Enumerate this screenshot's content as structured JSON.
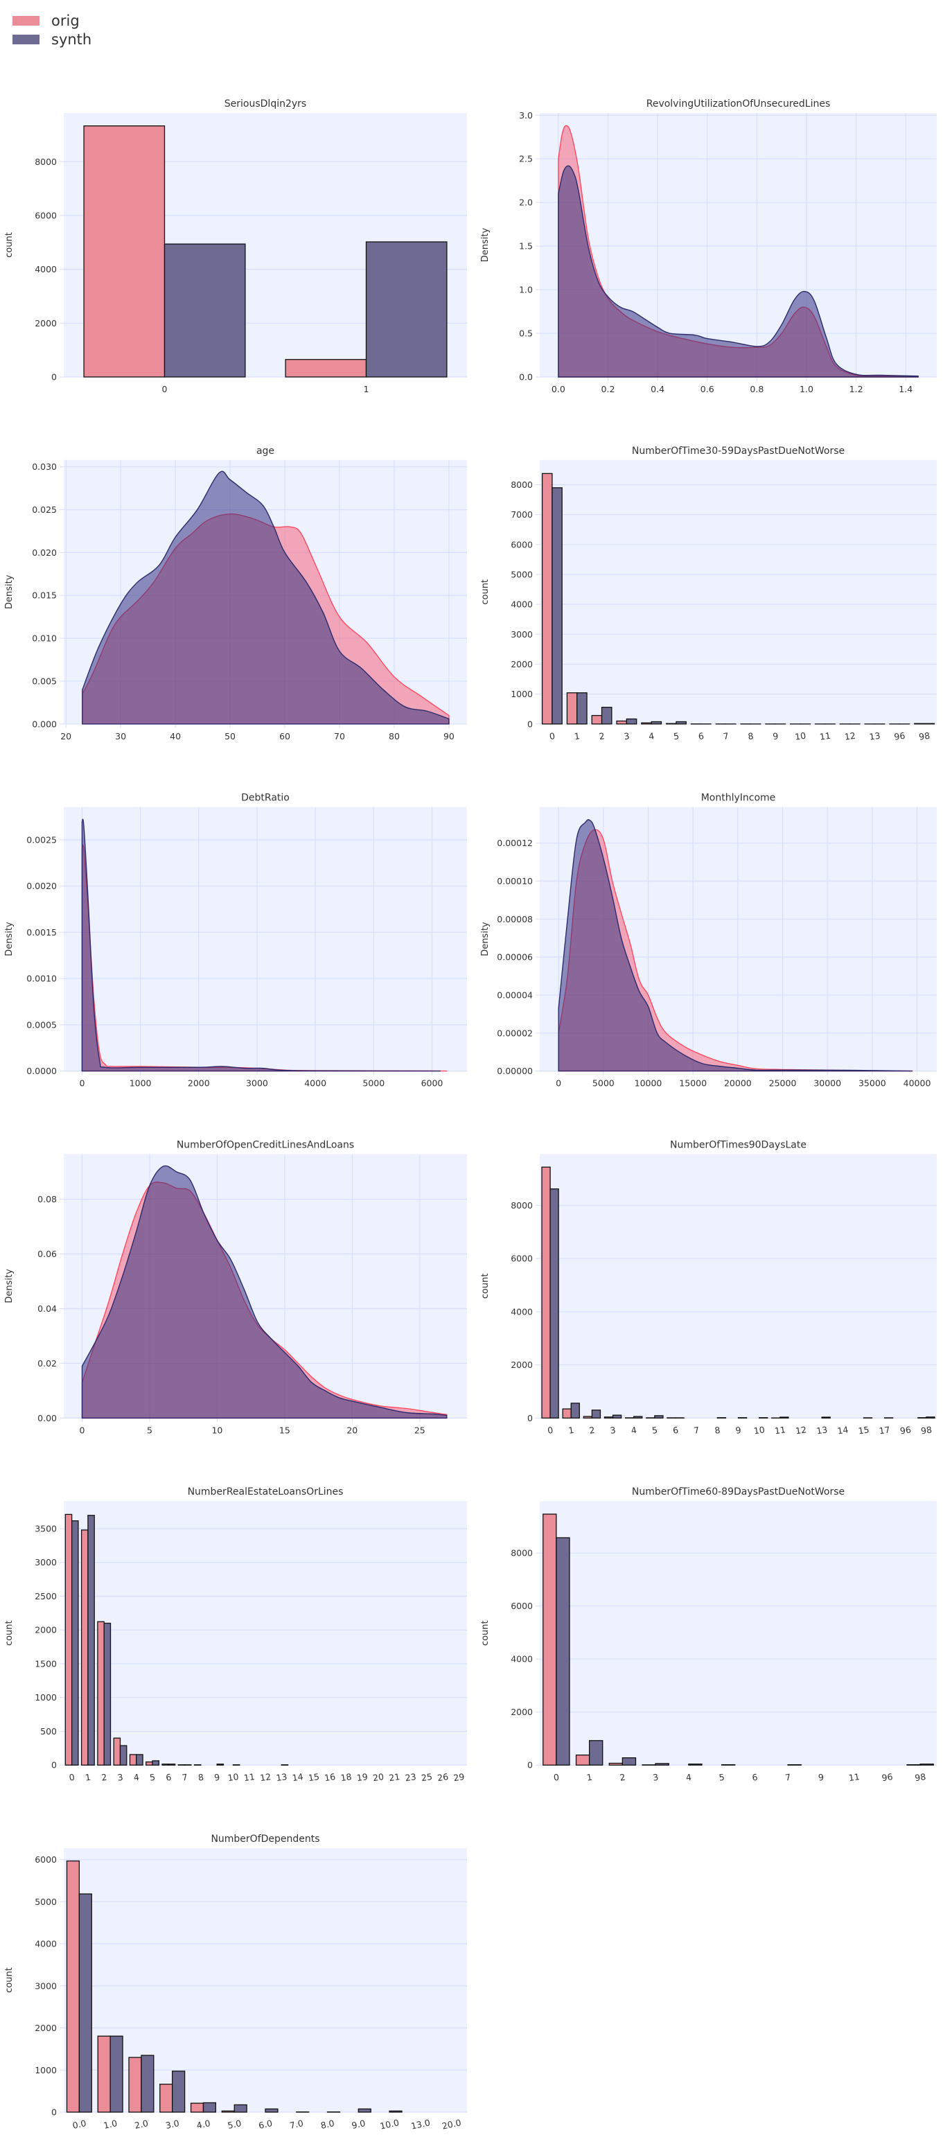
{
  "legend": {
    "items": [
      {
        "label": "orig",
        "color": "#ea8d98"
      },
      {
        "label": "synth",
        "color": "#6e6b93"
      }
    ]
  },
  "colors": {
    "background": "#eef1fe",
    "grid": "#d7dffd",
    "orig_bar": "#ea8d98",
    "synth_bar": "#6e6b93",
    "orig_line": "#ff4a60",
    "orig_fill": "rgba(245,90,115,0.5)",
    "synth_line": "#2c2a6c",
    "synth_fill": "rgba(45,45,125,0.52)"
  },
  "chart_data": [
    {
      "type": "bar",
      "title": "SeriousDlqin2yrs",
      "ylabel": "count",
      "xlabel": "",
      "categories": [
        "0",
        "1"
      ],
      "grid": "y",
      "ylim": [
        0,
        9810
      ],
      "yticks": [
        "0",
        "2000",
        "4000",
        "6000",
        "8000"
      ],
      "xtick_rotation": 0,
      "series": [
        {
          "name": "orig",
          "values": [
            9330,
            650
          ]
        },
        {
          "name": "synth",
          "values": [
            4940,
            5020
          ]
        }
      ]
    },
    {
      "type": "area",
      "title": "RevolvingUtilizationOfUnsecuredLines",
      "ylabel": "Density",
      "xlabel": "",
      "grid": "both",
      "xlim": [
        -0.075,
        1.525
      ],
      "ylim": [
        0,
        3.026
      ],
      "xticks": [
        "0.0",
        "0.2",
        "0.4",
        "0.6",
        "0.8",
        "1.0",
        "1.2",
        "1.4"
      ],
      "yticks": [
        "0.0",
        "0.5",
        "1.0",
        "1.5",
        "2.0",
        "2.5",
        "3.0"
      ],
      "series": [
        {
          "name": "orig",
          "x": [
            0,
            0.015,
            0.03,
            0.05,
            0.08,
            0.12,
            0.16,
            0.2,
            0.25,
            0.3,
            0.4,
            0.5,
            0.6,
            0.7,
            0.8,
            0.85,
            0.9,
            0.95,
            0.99,
            1.03,
            1.08,
            1.12,
            1.2,
            1.3,
            1.45
          ],
          "y": [
            2.5,
            2.78,
            2.88,
            2.8,
            2.4,
            1.6,
            1.15,
            0.9,
            0.75,
            0.65,
            0.52,
            0.44,
            0.38,
            0.34,
            0.34,
            0.36,
            0.5,
            0.72,
            0.8,
            0.7,
            0.35,
            0.12,
            0.02,
            0.01,
            0.005
          ]
        },
        {
          "name": "synth",
          "x": [
            0,
            0.02,
            0.04,
            0.06,
            0.08,
            0.12,
            0.16,
            0.2,
            0.25,
            0.3,
            0.35,
            0.4,
            0.45,
            0.55,
            0.6,
            0.7,
            0.8,
            0.85,
            0.9,
            0.95,
            0.99,
            1.03,
            1.08,
            1.12,
            1.2,
            1.3,
            1.45
          ],
          "y": [
            2.1,
            2.35,
            2.42,
            2.35,
            2.15,
            1.5,
            1.1,
            0.92,
            0.8,
            0.75,
            0.66,
            0.57,
            0.5,
            0.48,
            0.44,
            0.4,
            0.35,
            0.4,
            0.6,
            0.88,
            0.98,
            0.88,
            0.45,
            0.15,
            0.03,
            0.02,
            0.01
          ]
        }
      ]
    },
    {
      "type": "area",
      "title": "age",
      "ylabel": "Density",
      "xlabel": "",
      "grid": "both",
      "xlim": [
        19.6,
        93.3
      ],
      "ylim": [
        0,
        0.0308
      ],
      "xticks": [
        "20",
        "30",
        "40",
        "50",
        "60",
        "70",
        "80",
        "90"
      ],
      "yticks": [
        "0.000",
        "0.005",
        "0.010",
        "0.015",
        "0.020",
        "0.025",
        "0.030"
      ],
      "series": [
        {
          "name": "orig",
          "x": [
            23,
            25,
            28,
            30,
            33,
            36,
            40,
            43,
            46,
            50,
            54,
            58,
            61,
            63,
            66,
            70,
            75,
            80,
            85,
            90
          ],
          "y": [
            0.0035,
            0.006,
            0.0105,
            0.0125,
            0.0143,
            0.0165,
            0.0205,
            0.0222,
            0.0238,
            0.0245,
            0.024,
            0.023,
            0.023,
            0.0222,
            0.018,
            0.0125,
            0.0095,
            0.0055,
            0.0032,
            0.001
          ]
        },
        {
          "name": "synth",
          "x": [
            23,
            26,
            30,
            33,
            37,
            40,
            44,
            48,
            50,
            53,
            56,
            58,
            60,
            64,
            67,
            70,
            74,
            78,
            82,
            86,
            90
          ],
          "y": [
            0.004,
            0.009,
            0.014,
            0.0165,
            0.0185,
            0.0218,
            0.025,
            0.0293,
            0.0285,
            0.027,
            0.0255,
            0.023,
            0.02,
            0.0165,
            0.013,
            0.0085,
            0.0065,
            0.004,
            0.002,
            0.0015,
            0.0006
          ]
        }
      ]
    },
    {
      "type": "bar",
      "title": "NumberOfTime30-59DaysPastDueNotWorse",
      "ylabel": "count",
      "xlabel": "",
      "categories": [
        "0",
        "1",
        "2",
        "3",
        "4",
        "5",
        "6",
        "7",
        "8",
        "9",
        "10",
        "11",
        "12",
        "13",
        "96",
        "98"
      ],
      "grid": "y",
      "ylim": [
        0,
        8827
      ],
      "xtick_rotation": -8,
      "yticks": [
        "0",
        "1000",
        "2000",
        "3000",
        "4000",
        "5000",
        "6000",
        "7000",
        "8000"
      ],
      "series": [
        {
          "name": "orig",
          "values": [
            8374,
            1043,
            284,
            100,
            38,
            15,
            3,
            2,
            2,
            2,
            1,
            1,
            1,
            1,
            1,
            15
          ]
        },
        {
          "name": "synth",
          "values": [
            7899,
            1043,
            560,
            169,
            77,
            77,
            2,
            1,
            1,
            1,
            1,
            1,
            1,
            1,
            1,
            15
          ]
        }
      ]
    },
    {
      "type": "area",
      "title": "DebtRatio",
      "ylabel": "Density",
      "xlabel": "",
      "grid": "both",
      "xlim": [
        -314,
        6600
      ],
      "ylim": [
        0,
        0.002855
      ],
      "xticks": [
        "0",
        "1000",
        "2000",
        "3000",
        "4000",
        "5000",
        "6000"
      ],
      "yticks": [
        "0.0000",
        "0.0005",
        "0.0010",
        "0.0015",
        "0.0020",
        "0.0025"
      ],
      "series": [
        {
          "name": "orig",
          "x": [
            0,
            30,
            100,
            200,
            300,
            400,
            500,
            1000,
            2000,
            2500,
            3000,
            3500,
            4000,
            6000,
            6250
          ],
          "y": [
            0.0024,
            0.0024,
            0.0018,
            0.0008,
            0.0002,
            7e-05,
            5e-05,
            5e-05,
            4e-05,
            4e-05,
            3e-05,
            1e-05,
            5e-06,
            1e-06,
            0
          ]
        },
        {
          "name": "synth",
          "x": [
            0,
            30,
            100,
            200,
            300,
            400,
            1000,
            2000,
            2400,
            2800,
            3100,
            3400,
            4000,
            6150
          ],
          "y": [
            0.0027,
            0.00265,
            0.0019,
            0.0007,
            0.00012,
            4e-05,
            4e-05,
            4e-05,
            5e-05,
            3e-05,
            3e-05,
            1e-05,
            3e-06,
            0
          ]
        }
      ]
    },
    {
      "type": "area",
      "title": "MonthlyIncome",
      "ylabel": "Density",
      "xlabel": "",
      "grid": "both",
      "xlim": [
        -2100,
        42200
      ],
      "ylim": [
        0,
        0.000139
      ],
      "xticks": [
        "0",
        "5000",
        "10000",
        "15000",
        "20000",
        "25000",
        "30000",
        "35000",
        "40000"
      ],
      "yticks": [
        "0.00000",
        "0.00002",
        "0.00004",
        "0.00006",
        "0.00008",
        "0.00010",
        "0.00012"
      ],
      "series": [
        {
          "name": "orig",
          "x": [
            0,
            1000,
            2000,
            3000,
            4000,
            5000,
            6000,
            7000,
            8000,
            9000,
            10000,
            11000,
            12000,
            14000,
            16000,
            18000,
            20000,
            22000,
            25000,
            30000,
            35000,
            39500
          ],
          "y": [
            2e-05,
            5e-05,
            0.0001,
            0.00012,
            0.000127,
            0.000122,
            0.0001,
            8.3e-05,
            6.7e-05,
            4.8e-05,
            4e-05,
            2.8e-05,
            2e-05,
            1.3e-05,
            8.5e-06,
            5e-06,
            3e-06,
            1.2e-06,
            8e-07,
            5e-07,
            2e-07,
            0
          ]
        },
        {
          "name": "synth",
          "x": [
            0,
            1000,
            2000,
            3000,
            3500,
            4000,
            5000,
            6000,
            7000,
            8000,
            9000,
            10000,
            11000,
            12000,
            14000,
            16000,
            18000,
            20000,
            22000,
            25000,
            32500,
            39500
          ],
          "y": [
            3.3e-05,
            8e-05,
            0.000122,
            0.000131,
            0.000132,
            0.000128,
            0.000112,
            9.2e-05,
            7e-05,
            5.5e-05,
            4.2e-05,
            3.4e-05,
            2e-05,
            1.5e-05,
            8.5e-06,
            4e-06,
            2.5e-06,
            1.5e-06,
            5e-07,
            5e-07,
            4e-07,
            0
          ]
        }
      ]
    },
    {
      "type": "area",
      "title": "NumberOfOpenCreditLinesAndLoans",
      "ylabel": "Density",
      "xlabel": "",
      "grid": "both",
      "xlim": [
        -1.36,
        28.5
      ],
      "ylim": [
        0,
        0.0965
      ],
      "xticks": [
        "0",
        "5",
        "10",
        "15",
        "20",
        "25"
      ],
      "yticks": [
        "0.00",
        "0.02",
        "0.04",
        "0.06",
        "0.08"
      ],
      "series": [
        {
          "name": "orig",
          "x": [
            0,
            1,
            2,
            3,
            4,
            5,
            6,
            7,
            8,
            9,
            10,
            11,
            12,
            13,
            14,
            15,
            16,
            17,
            18,
            19,
            20,
            22,
            24,
            26,
            27
          ],
          "y": [
            0.013,
            0.028,
            0.043,
            0.06,
            0.075,
            0.085,
            0.086,
            0.084,
            0.083,
            0.075,
            0.065,
            0.055,
            0.043,
            0.034,
            0.029,
            0.025,
            0.02,
            0.015,
            0.011,
            0.0085,
            0.0068,
            0.0045,
            0.0035,
            0.002,
            0.0013
          ]
        },
        {
          "name": "synth",
          "x": [
            0,
            1,
            2,
            3,
            4,
            5,
            6,
            7,
            8,
            9,
            10,
            11,
            12,
            13,
            14,
            15,
            16,
            17,
            18,
            19,
            20,
            22,
            24,
            26,
            27
          ],
          "y": [
            0.019,
            0.028,
            0.038,
            0.052,
            0.068,
            0.085,
            0.092,
            0.09,
            0.087,
            0.075,
            0.065,
            0.058,
            0.047,
            0.035,
            0.029,
            0.024,
            0.019,
            0.013,
            0.01,
            0.0075,
            0.0062,
            0.004,
            0.002,
            0.0015,
            0.001
          ]
        }
      ]
    },
    {
      "type": "bar",
      "title": "NumberOfTimes90DaysLate",
      "ylabel": "count",
      "xlabel": "",
      "categories": [
        "0",
        "1",
        "2",
        "3",
        "4",
        "5",
        "6",
        "7",
        "8",
        "9",
        "10",
        "11",
        "12",
        "13",
        "14",
        "15",
        "17",
        "96",
        "98"
      ],
      "grid": "y",
      "ylim": [
        0,
        9931
      ],
      "xtick_rotation": -8,
      "yticks": [
        "0",
        "2000",
        "4000",
        "6000",
        "8000"
      ],
      "series": [
        {
          "name": "orig",
          "values": [
            9440,
            345,
            60,
            40,
            10,
            10,
            10,
            0,
            0,
            0,
            0,
            5,
            0,
            0,
            0,
            0,
            0,
            0,
            15
          ]
        },
        {
          "name": "synth",
          "values": [
            8620,
            560,
            300,
            110,
            60,
            90,
            10,
            0,
            15,
            15,
            15,
            35,
            0,
            35,
            0,
            10,
            10,
            0,
            40
          ]
        }
      ]
    },
    {
      "type": "bar",
      "title": "NumberRealEstateLoansOrLines",
      "ylabel": "count",
      "xlabel": "",
      "categories": [
        "0",
        "1",
        "2",
        "3",
        "4",
        "5",
        "6",
        "7",
        "8",
        "9",
        "10",
        "11",
        "12",
        "13",
        "14",
        "15",
        "16",
        "18",
        "19",
        "20",
        "21",
        "23",
        "25",
        "26",
        "29"
      ],
      "grid": "y",
      "ylim": [
        0,
        3908
      ],
      "xtick_rotation": -8,
      "yticks": [
        "0",
        "500",
        "1000",
        "1500",
        "2000",
        "2500",
        "3000",
        "3500"
      ],
      "series": [
        {
          "name": "orig",
          "values": [
            3711,
            3480,
            2123,
            400,
            156,
            47,
            15,
            5,
            5,
            0,
            0,
            0,
            0,
            0,
            0,
            0,
            0,
            0,
            0,
            0,
            0,
            0,
            0,
            0,
            0
          ]
        },
        {
          "name": "synth",
          "values": [
            3616,
            3697,
            2100,
            288,
            156,
            64,
            15,
            5,
            0,
            15,
            5,
            0,
            0,
            5,
            0,
            0,
            0,
            0,
            0,
            0,
            0,
            0,
            0,
            0,
            0
          ]
        }
      ]
    },
    {
      "type": "bar",
      "title": "NumberOfTime60-89DaysPastDueNotWorse",
      "ylabel": "count",
      "xlabel": "",
      "categories": [
        "0",
        "1",
        "2",
        "3",
        "4",
        "5",
        "6",
        "7",
        "9",
        "11",
        "96",
        "98"
      ],
      "grid": "y",
      "ylim": [
        0,
        9961
      ],
      "xtick_rotation": -8,
      "yticks": [
        "0",
        "2000",
        "4000",
        "6000",
        "8000"
      ],
      "series": [
        {
          "name": "orig",
          "values": [
            9469,
            380,
            70,
            10,
            0,
            0,
            0,
            0,
            0,
            0,
            0,
            15
          ]
        },
        {
          "name": "synth",
          "values": [
            8579,
            925,
            276,
            60,
            40,
            15,
            0,
            15,
            0,
            0,
            0,
            40
          ]
        }
      ]
    },
    {
      "type": "bar",
      "title": "NumberOfDependents",
      "ylabel": "count",
      "xlabel": "",
      "categories": [
        "0.0",
        "1.0",
        "2.0",
        "3.0",
        "4.0",
        "5.0",
        "6.0",
        "7.0",
        "8.0",
        "9.0",
        "10.0",
        "13.0",
        "20.0"
      ],
      "grid": "y",
      "ylim": [
        0,
        6272
      ],
      "xtick_rotation": -12,
      "yticks": [
        "0",
        "1000",
        "2000",
        "3000",
        "4000",
        "5000",
        "6000"
      ],
      "series": [
        {
          "name": "orig",
          "values": [
            5967,
            1806,
            1300,
            664,
            212,
            27,
            0,
            0,
            0,
            0,
            0,
            0,
            0
          ]
        },
        {
          "name": "synth",
          "values": [
            5184,
            1806,
            1349,
            974,
            223,
            174,
            76,
            5,
            5,
            76,
            27,
            0,
            0
          ]
        }
      ]
    }
  ]
}
